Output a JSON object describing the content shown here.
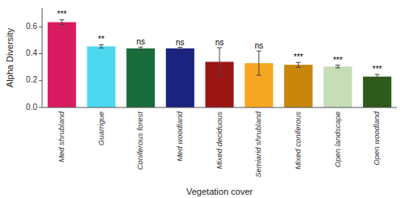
{
  "chart_data": {
    "type": "bar",
    "categories": [
      "Med shrubland",
      "Guarrigue",
      "Coniferous forest",
      "Med woodland",
      "Mixed deciduous",
      "Semiarid shrubland",
      "Mixed coniferous",
      "Open landscape",
      "Open woodland"
    ],
    "values": [
      0.635,
      0.455,
      0.44,
      0.44,
      0.34,
      0.33,
      0.318,
      0.305,
      0.23
    ],
    "errors": [
      0.018,
      0.012,
      0.01,
      0.008,
      0.105,
      0.09,
      0.018,
      0.01,
      0.016
    ],
    "colors": [
      "#D81B60",
      "#4DD8F0",
      "#1A6B3C",
      "#1A237E",
      "#9B1515",
      "#F5A623",
      "#C8860A",
      "#C5DEB5",
      "#2E5A1C"
    ],
    "annotations": [
      "***",
      "**",
      "ns",
      "ns",
      "ns",
      "ns",
      "***",
      "***",
      "***"
    ],
    "xlabel": "Vegetation cover",
    "ylabel": "Alpha Diversity",
    "ylim": [
      0.0,
      0.74
    ],
    "yticks": [
      {
        "value": 0.0,
        "label": "0.0"
      },
      0.2,
      0.4,
      0.6
    ],
    "grid": false
  }
}
